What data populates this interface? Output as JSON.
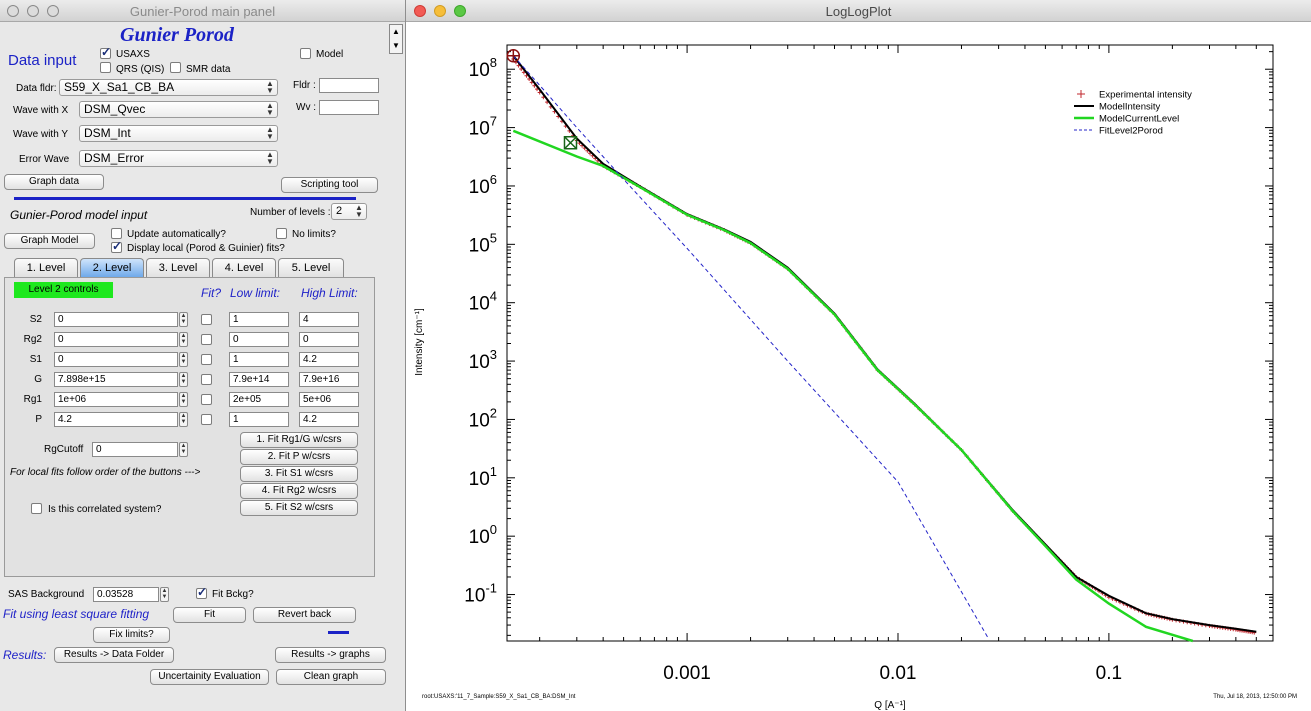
{
  "panel": {
    "title": "Gunier-Porod main panel",
    "heading": "Gunier Porod",
    "data_input": "Data input",
    "usaxs": "USAXS",
    "qrs": "QRS (QIS)",
    "smr": "SMR data",
    "model": "Model",
    "data_fldr_label": "Data fldr:",
    "data_fldr_value": "S59_X_Sa1_CB_BA",
    "fldr_label": "Fldr :",
    "wv_label": "Wv :",
    "wave_x_label": "Wave with X",
    "wave_x_value": "DSM_Qvec",
    "wave_y_label": "Wave with Y",
    "wave_y_value": "DSM_Int",
    "error_label": "Error Wave",
    "error_value": "DSM_Error",
    "graph_data": "Graph data",
    "scripting_tool": "Scripting tool",
    "model_input": "Gunier-Porod model input",
    "num_levels_label": "Number of levels :",
    "num_levels_value": "2",
    "graph_model": "Graph Model",
    "update_auto": "Update automatically?",
    "no_limits": "No limits?",
    "display_local": "Display local (Porod & Guinier) fits?",
    "tabs": [
      "1. Level",
      "2. Level",
      "3. Level",
      "4. Level",
      "5. Level"
    ],
    "level_controls": "Level  2 controls",
    "fit_hdr": "Fit?",
    "low_hdr": "Low limit:",
    "high_hdr": "High Limit:",
    "params": [
      {
        "name": "S2",
        "value": "0",
        "low": "1",
        "high": "4"
      },
      {
        "name": "Rg2",
        "value": "0",
        "low": "0",
        "high": "0"
      },
      {
        "name": "S1",
        "value": "0",
        "low": "1",
        "high": "4.2"
      },
      {
        "name": "G",
        "value": "7.898e+15",
        "low": "7.9e+14",
        "high": "7.9e+16"
      },
      {
        "name": "Rg1",
        "value": "1e+06",
        "low": "2e+05",
        "high": "5e+06"
      },
      {
        "name": "P",
        "value": "4.2",
        "low": "1",
        "high": "4.2"
      }
    ],
    "rgcutoff_label": "RgCutoff",
    "rgcutoff_value": "0",
    "local_fits_text": "For local fits follow order of the buttons --->",
    "correlated": "Is this correlated system?",
    "fit_buttons": [
      "1.     Fit Rg1/G w/csrs",
      "2.       Fit P w/csrs",
      "3.      Fit S1 w/csrs",
      "4.     Fit Rg2 w/csrs",
      "5.      Fit S2 w/csrs"
    ],
    "sas_bg_label": "SAS Background",
    "sas_bg_value": "0.03528",
    "fit_bckg": "Fit Bckg?",
    "fit_lsq": "Fit using least square fitting",
    "fit": "Fit",
    "revert_back": "Revert back",
    "fix_limits": "Fix limits?",
    "results_label": "Results:",
    "results_data_folder": "Results -> Data Folder",
    "results_graphs": "Results -> graphs",
    "uncertainty": "Uncertainity Evaluation",
    "clean_graph": "Clean graph"
  },
  "plot": {
    "title": "LogLogPlot",
    "footer_left": "root:USAXS:'11_7_Sample:S59_X_Sa1_CB_BA:DSM_Int",
    "footer_right": "Thu, Jul 18, 2013, 12:50:00 PM",
    "colors": {
      "experimental": "#c1272d",
      "model": "#000000",
      "current_level": "#21d621",
      "porod": "#2424c8"
    }
  },
  "chart_data": {
    "type": "line",
    "xscale": "log",
    "yscale": "log",
    "xlabel": "Q [A⁻¹]",
    "ylabel": "Intensity [cm⁻¹]",
    "xlim": [
      0.00014,
      0.6
    ],
    "ylim": [
      0.016,
      260000000
    ],
    "x_ticks": [
      "0.001",
      "0.01",
      "0.1"
    ],
    "y_ticks": [
      "10^8",
      "10^7",
      "10^6",
      "10^5",
      "10^4",
      "10^3",
      "10^2",
      "10^1",
      "10^0",
      "10^-1"
    ],
    "legend_position": "top-right",
    "series": [
      {
        "name": "Experimental intensity",
        "style": "plus-markers",
        "x": [
          0.00015,
          0.0002,
          0.0003,
          0.0004,
          0.0006,
          0.001,
          0.0015,
          0.002,
          0.003,
          0.005,
          0.008,
          0.012,
          0.02,
          0.035,
          0.05,
          0.07,
          0.1,
          0.15,
          0.2,
          0.3,
          0.4,
          0.5
        ],
        "y": [
          150000000,
          40000000,
          6000000,
          2200000,
          960000,
          320000,
          175000,
          105000,
          38000,
          6300,
          700,
          180,
          30,
          2.7,
          0.7,
          0.2,
          0.09,
          0.047,
          0.037,
          0.029,
          0.025,
          0.022
        ]
      },
      {
        "name": "ModelIntensity",
        "style": "solid",
        "x": [
          0.00015,
          0.0002,
          0.0003,
          0.0004,
          0.0006,
          0.001,
          0.0015,
          0.002,
          0.003,
          0.005,
          0.008,
          0.012,
          0.02,
          0.035,
          0.05,
          0.07,
          0.1,
          0.15,
          0.2,
          0.3,
          0.4,
          0.5
        ],
        "y": [
          170000000,
          45000000,
          6500000,
          2400000,
          980000,
          330000,
          180000,
          110000,
          40000,
          6500,
          720,
          185,
          30,
          2.8,
          0.72,
          0.2,
          0.095,
          0.048,
          0.038,
          0.03,
          0.026,
          0.023
        ]
      },
      {
        "name": "ModelCurrentLevel",
        "style": "solid",
        "x": [
          0.00015,
          0.0003,
          0.0004,
          0.0006,
          0.001,
          0.0015,
          0.002,
          0.003,
          0.005,
          0.008,
          0.012,
          0.02,
          0.035,
          0.05,
          0.07,
          0.1,
          0.15,
          0.25
        ],
        "y": [
          8800000,
          3200000,
          2200000,
          950000,
          320000,
          175000,
          105000,
          38000,
          6300,
          700,
          180,
          30,
          2.7,
          0.68,
          0.18,
          0.07,
          0.028,
          0.016
        ]
      },
      {
        "name": "FitLevel2Porod",
        "style": "dashed",
        "x": [
          0.00015,
          0.0002,
          0.0003,
          0.0005,
          0.001,
          0.003,
          0.01,
          0.027
        ],
        "y": [
          170000000,
          53000000,
          10000000,
          1300000,
          85000,
          1000,
          8.5,
          0.017
        ]
      }
    ],
    "cursors": [
      {
        "name": "A",
        "x": 0.00015,
        "y": 170000000
      },
      {
        "name": "B",
        "x": 0.00028,
        "y": 5500000
      }
    ]
  }
}
